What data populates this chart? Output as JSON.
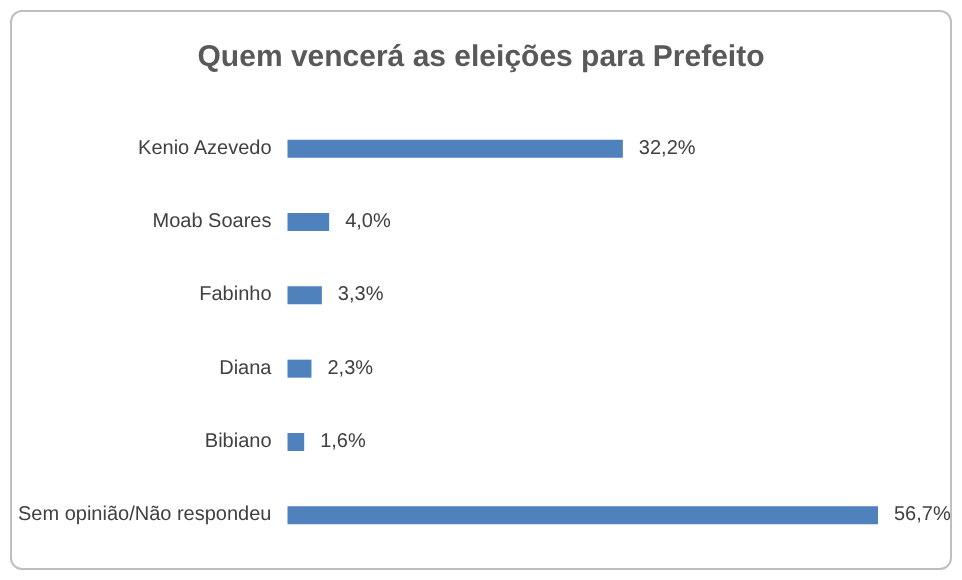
{
  "chart_data": {
    "type": "bar",
    "orientation": "horizontal",
    "title": "Quem vencerá as eleições para Prefeito",
    "categories": [
      "Kenio Azevedo",
      "Moab Soares",
      "Fabinho",
      "Diana",
      "Bibiano",
      "Sem opinião/Não respondeu"
    ],
    "values": [
      32.2,
      4.0,
      3.3,
      2.3,
      1.6,
      56.7
    ],
    "value_labels": [
      "32,2%",
      "4,0%",
      "3,3%",
      "2,3%",
      "1,6%",
      "56,7%"
    ],
    "color": "#4f81bd"
  }
}
